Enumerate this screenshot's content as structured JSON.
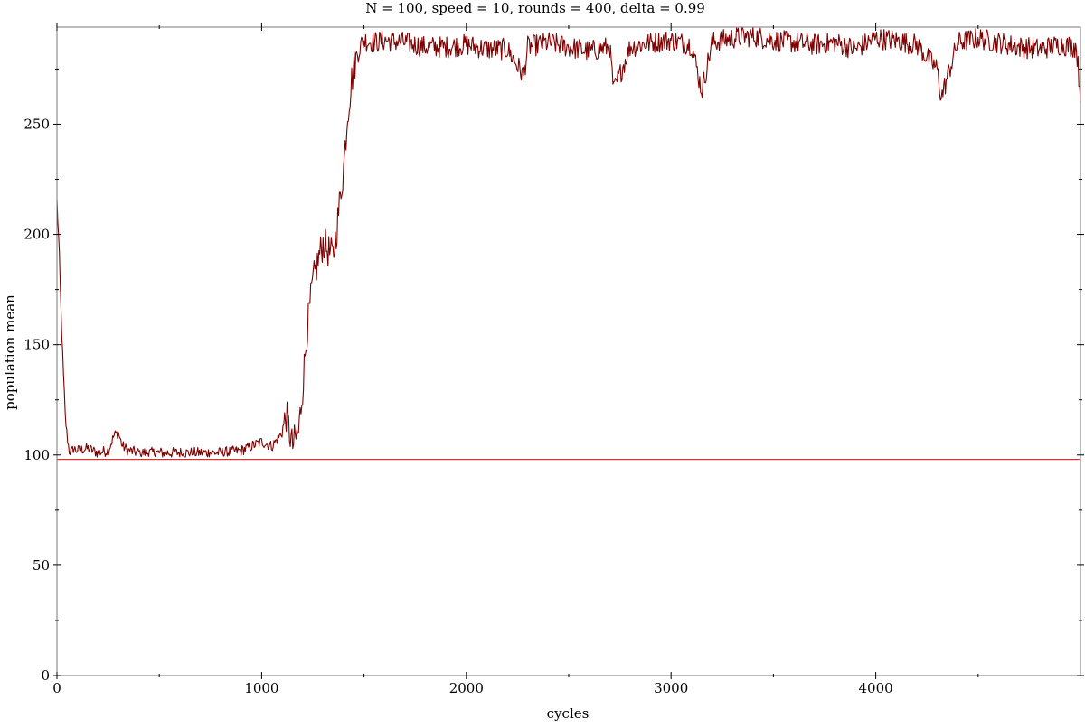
{
  "chart_data": {
    "type": "line",
    "title": "N = 100, speed = 10, rounds = 400, delta = 0.99",
    "xlabel": "cycles",
    "ylabel": "population mean",
    "xlim": [
      0,
      5000
    ],
    "ylim": [
      0,
      294
    ],
    "x_ticks": [
      0,
      1000,
      2000,
      3000,
      4000
    ],
    "x_tick_labels": [
      "0",
      "1000",
      "2000",
      "3000",
      "4000"
    ],
    "y_ticks": [
      0,
      50,
      100,
      150,
      200,
      250
    ],
    "y_tick_labels": [
      "0",
      "50",
      "100",
      "150",
      "200",
      "250"
    ],
    "grid": false,
    "reference_lines": [
      {
        "y": 294,
        "color": "#0000ff"
      },
      {
        "y": 98,
        "color": "#ff0000"
      }
    ],
    "series": [
      {
        "color": "#7f0000",
        "x": [
          0,
          10,
          20,
          30,
          40,
          50,
          60,
          70,
          80,
          100,
          150,
          200,
          250,
          280,
          300,
          320,
          350,
          400,
          500,
          600,
          700,
          800,
          900,
          950,
          1000,
          1050,
          1100,
          1120,
          1150,
          1180,
          1200,
          1220,
          1250,
          1280,
          1300,
          1330,
          1350,
          1370,
          1400,
          1420,
          1440,
          1460,
          1480,
          1500,
          1550,
          1600,
          1700,
          1800,
          1900,
          2000,
          2100,
          2200,
          2280,
          2300,
          2400,
          2500,
          2600,
          2700,
          2720,
          2800,
          2900,
          3000,
          3100,
          3150,
          3200,
          3300,
          3400,
          3500,
          3600,
          3700,
          3800,
          3900,
          4000,
          4100,
          4200,
          4300,
          4320,
          4400,
          4500,
          4600,
          4700,
          4800,
          4900,
          4980,
          5000
        ],
        "y": [
          215,
          195,
          165,
          140,
          118,
          108,
          102,
          101,
          103,
          102,
          103,
          101,
          102,
          109,
          110,
          104,
          102,
          101,
          101,
          101,
          101,
          101,
          102,
          104,
          106,
          104,
          110,
          118,
          104,
          110,
          130,
          155,
          178,
          190,
          196,
          192,
          190,
          205,
          230,
          255,
          270,
          280,
          285,
          288,
          287,
          288,
          287,
          285,
          285,
          286,
          284,
          284,
          272,
          285,
          287,
          285,
          283,
          285,
          265,
          285,
          287,
          288,
          286,
          265,
          287,
          289,
          290,
          288,
          287,
          286,
          287,
          284,
          289,
          288,
          286,
          275,
          262,
          287,
          289,
          287,
          285,
          284,
          286,
          285,
          263
        ]
      }
    ]
  }
}
